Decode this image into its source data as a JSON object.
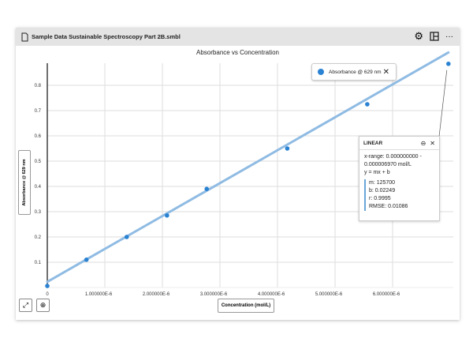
{
  "window": {
    "title": "Sample Data Sustainable Spectroscopy Part 2B.smbl",
    "icons": [
      "file-icon",
      "gear-icon",
      "layout-icon",
      "more-icon"
    ]
  },
  "chart_data": {
    "type": "scatter",
    "title": "Absorbance vs Concentration",
    "xlabel": "Concentration (mol/L)",
    "ylabel": "Absorbance @ 629 nm",
    "xlim": [
      0,
      7e-06
    ],
    "ylim": [
      0,
      0.88
    ],
    "xticks": [
      "0",
      "1.000000E-6",
      "2.000000E-6",
      "3.000000E-6",
      "4.000000E-6",
      "5.000000E-6",
      "6.000000E-6"
    ],
    "yticks": [
      "0.1",
      "0.2",
      "0.3",
      "0.4",
      "0.5",
      "0.6",
      "0.7",
      "0.8"
    ],
    "grid": true,
    "legend": "top-right",
    "series": [
      {
        "name": "Absorbance @ 629 nm",
        "color": "#2a82d2",
        "x": [
          0,
          6.8e-07,
          1.38e-06,
          2.08e-06,
          2.77e-06,
          4.17e-06,
          5.56e-06,
          6.97e-06
        ],
        "y": [
          0.006,
          0.11,
          0.2,
          0.285,
          0.39,
          0.55,
          0.725,
          0.885
        ]
      }
    ],
    "fit": {
      "type": "linear",
      "m": 125700,
      "b": 0.02249,
      "color": "#8fbbe3"
    }
  },
  "fit_panel": {
    "title": "LINEAR",
    "range_line1": "x-range: 0.000000000 -",
    "range_line2": "0.000006970 mol/L",
    "equation": "y = mx + b",
    "m": "m: 125700",
    "b": "b: 0.02249",
    "r": "r: 0.9995",
    "rmse": "RMSE: 0.01086"
  },
  "legend": {
    "label": "Absorbance @ 629 nm",
    "close": "✕"
  }
}
